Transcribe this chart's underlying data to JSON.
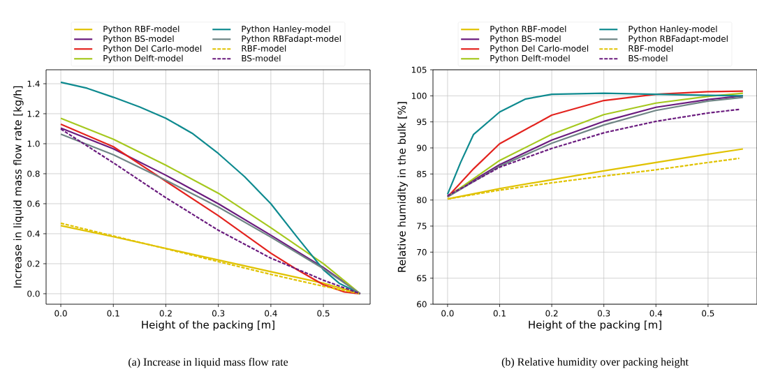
{
  "chart_data": [
    {
      "type": "line",
      "xlabel": "Height of the packing [m]",
      "ylabel": "Increase in liquid mass flow rate [kg/h]",
      "annotations": [
        "(a) Increase in liquid mass flow rate"
      ],
      "xlim": [
        -0.028,
        0.589
      ],
      "ylim": [
        -0.07,
        1.493
      ],
      "xticks": [
        {
          "value": 0,
          "label": "0.0"
        },
        {
          "value": 0.1,
          "label": "0.1"
        },
        {
          "value": 0.2,
          "label": "0.2"
        },
        {
          "value": 0.3,
          "label": "0.3"
        },
        {
          "value": 0.4,
          "label": "0.4"
        },
        {
          "value": 0.5,
          "label": "0.5"
        }
      ],
      "yticks": [
        {
          "value": 0,
          "label": "0.0"
        },
        {
          "value": 0.2,
          "label": "0.2"
        },
        {
          "value": 0.4,
          "label": "0.4"
        },
        {
          "value": 0.6,
          "label": "0.6"
        },
        {
          "value": 0.8,
          "label": "0.8"
        },
        {
          "value": 1.0,
          "label": "1.0"
        },
        {
          "value": 1.2,
          "label": "1.2"
        },
        {
          "value": 1.4,
          "label": "1.4"
        }
      ],
      "grid": true,
      "legend": "top",
      "series": [
        {
          "name": "Python RBF-model",
          "color": "#e0c200",
          "line_style": "solid",
          "x": [
            0,
            0.1,
            0.2,
            0.3,
            0.4,
            0.5,
            0.57
          ],
          "values": [
            0.454,
            0.38,
            0.302,
            0.225,
            0.147,
            0.07,
            0
          ]
        },
        {
          "name": "Python BS-model",
          "color": "#6a1b7e",
          "line_style": "solid",
          "x": [
            0,
            0.1,
            0.2,
            0.3,
            0.4,
            0.5,
            0.57
          ],
          "values": [
            1.105,
            0.966,
            0.79,
            0.6,
            0.39,
            0.175,
            0
          ]
        },
        {
          "name": "Python Del Carlo-model",
          "color": "#e3231e",
          "line_style": "solid",
          "x": [
            0,
            0.1,
            0.2,
            0.3,
            0.4,
            0.45,
            0.5,
            0.54,
            0.57
          ],
          "values": [
            1.13,
            0.98,
            0.75,
            0.52,
            0.27,
            0.16,
            0.06,
            0.012,
            0
          ]
        },
        {
          "name": "Python Delft-model",
          "color": "#a5c81e",
          "line_style": "solid",
          "x": [
            0,
            0.1,
            0.2,
            0.3,
            0.4,
            0.5,
            0.57
          ],
          "values": [
            1.17,
            1.03,
            0.857,
            0.67,
            0.44,
            0.2,
            0
          ]
        },
        {
          "name": "Python Hanley-model",
          "color": "#0e8a8f",
          "line_style": "solid",
          "x": [
            0,
            0.05,
            0.1,
            0.15,
            0.2,
            0.25,
            0.3,
            0.35,
            0.4,
            0.45,
            0.5,
            0.53,
            0.57
          ],
          "values": [
            1.41,
            1.37,
            1.31,
            1.245,
            1.17,
            1.07,
            0.935,
            0.78,
            0.6,
            0.377,
            0.16,
            0.07,
            0
          ]
        },
        {
          "name": "Python RBFadapt-model",
          "color": "#6f8585",
          "line_style": "solid",
          "x": [
            0,
            0.1,
            0.2,
            0.3,
            0.4,
            0.5,
            0.57
          ],
          "values": [
            1.064,
            0.927,
            0.757,
            0.578,
            0.377,
            0.167,
            0
          ]
        },
        {
          "name": "RBF-model",
          "color": "#e0c200",
          "line_style": "dashed",
          "x": [
            0,
            0.1,
            0.2,
            0.3,
            0.4,
            0.5,
            0.57
          ],
          "values": [
            0.47,
            0.385,
            0.3,
            0.214,
            0.129,
            0.05,
            0
          ]
        },
        {
          "name": "BS-model",
          "color": "#6a1b7e",
          "line_style": "dashed",
          "x": [
            0,
            0.1,
            0.2,
            0.3,
            0.4,
            0.5,
            0.57
          ],
          "values": [
            1.098,
            0.873,
            0.64,
            0.423,
            0.237,
            0.09,
            0
          ]
        }
      ]
    },
    {
      "type": "line",
      "xlabel": "Height of the packing [m]",
      "ylabel": "Relative humidity in the bulk [%]",
      "annotations": [
        "(b) Relative humidity over packing height"
      ],
      "xlim": [
        -0.028,
        0.594
      ],
      "ylim": [
        60,
        105
      ],
      "xticks": [
        {
          "value": 0,
          "label": "0.0"
        },
        {
          "value": 0.1,
          "label": "0.1"
        },
        {
          "value": 0.2,
          "label": "0.2"
        },
        {
          "value": 0.3,
          "label": "0.3"
        },
        {
          "value": 0.4,
          "label": "0.4"
        },
        {
          "value": 0.5,
          "label": "0.5"
        }
      ],
      "yticks": [
        60,
        65,
        70,
        75,
        80,
        85,
        90,
        95,
        100,
        105
      ],
      "grid": true,
      "legend": "top",
      "series": [
        {
          "name": "Python RBF-model",
          "color": "#e0c200",
          "line_style": "solid",
          "x": [
            0,
            0.1,
            0.2,
            0.3,
            0.4,
            0.5,
            0.567
          ],
          "values": [
            80.2,
            82.2,
            83.9,
            85.6,
            87.2,
            88.8,
            89.8
          ]
        },
        {
          "name": "Python BS-model",
          "color": "#6a1b7e",
          "line_style": "solid",
          "x": [
            0,
            0.1,
            0.2,
            0.3,
            0.4,
            0.5,
            0.567
          ],
          "values": [
            80.8,
            86.8,
            91.5,
            95.1,
            97.8,
            99.3,
            100.0
          ]
        },
        {
          "name": "Python Del Carlo-model",
          "color": "#e3231e",
          "line_style": "solid",
          "x": [
            0,
            0.05,
            0.1,
            0.2,
            0.3,
            0.4,
            0.5,
            0.567
          ],
          "values": [
            80.6,
            86.0,
            90.8,
            96.3,
            99.1,
            100.3,
            100.8,
            100.9
          ]
        },
        {
          "name": "Python Delft-model",
          "color": "#a5c81e",
          "line_style": "solid",
          "x": [
            0,
            0.1,
            0.2,
            0.3,
            0.4,
            0.5,
            0.567
          ],
          "values": [
            80.6,
            87.6,
            92.6,
            96.4,
            98.6,
            99.9,
            100.5
          ]
        },
        {
          "name": "Python Hanley-model",
          "color": "#0e8a8f",
          "line_style": "solid",
          "x": [
            0,
            0.025,
            0.05,
            0.1,
            0.15,
            0.2,
            0.3,
            0.4,
            0.5,
            0.567
          ],
          "values": [
            81.1,
            87.2,
            92.6,
            96.9,
            99.4,
            100.3,
            100.5,
            100.3,
            100.1,
            100.0
          ]
        },
        {
          "name": "Python RBFadapt-model",
          "color": "#6f8585",
          "line_style": "solid",
          "x": [
            0,
            0.1,
            0.2,
            0.3,
            0.4,
            0.5,
            0.567
          ],
          "values": [
            80.6,
            86.5,
            90.9,
            94.4,
            97.2,
            99.0,
            99.7
          ]
        },
        {
          "name": "RBF-model",
          "color": "#e0c200",
          "line_style": "dashed",
          "x": [
            0,
            0.1,
            0.2,
            0.3,
            0.4,
            0.5,
            0.56
          ],
          "values": [
            80.2,
            81.9,
            83.3,
            84.6,
            85.8,
            87.2,
            88.0
          ]
        },
        {
          "name": "BS-model",
          "color": "#6a1b7e",
          "line_style": "dashed",
          "x": [
            0,
            0.1,
            0.2,
            0.3,
            0.4,
            0.5,
            0.56
          ],
          "values": [
            80.8,
            86.3,
            89.9,
            92.9,
            95.1,
            96.7,
            97.4
          ]
        }
      ]
    }
  ]
}
